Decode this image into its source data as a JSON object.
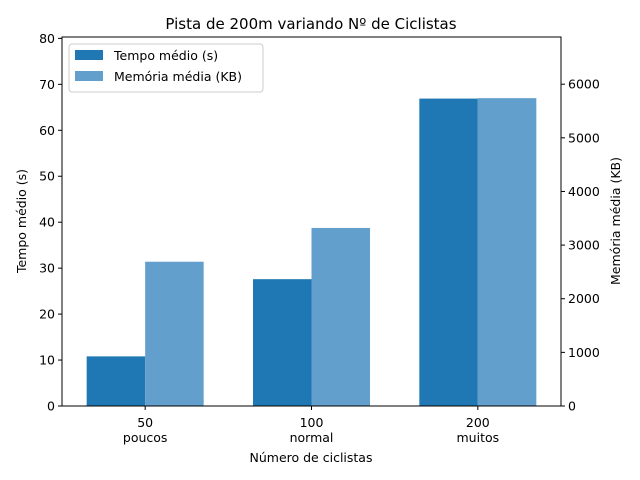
{
  "chart_data": {
    "type": "bar",
    "title": "Pista de 200m variando Nº de Ciclistas",
    "xlabel": "Número de ciclistas",
    "ylabel_left": "Tempo médio (s)",
    "ylabel_right": "Memória média (KB)",
    "categories": [
      {
        "line1": "50",
        "line2": "poucos"
      },
      {
        "line1": "100",
        "line2": "normal"
      },
      {
        "line1": "200",
        "line2": "muitos"
      }
    ],
    "series": [
      {
        "name": "Tempo médio (s)",
        "axis": "left",
        "color": "#1f77b4",
        "values": [
          10.8,
          27.6,
          66.9
        ]
      },
      {
        "name": "Memória média (KB)",
        "axis": "right",
        "color": "#629fcd",
        "values": [
          2690,
          3320,
          5740
        ]
      }
    ],
    "ylim_left": [
      0,
      80.3
    ],
    "ylim_right": [
      0,
      6880
    ],
    "yticks_left": [
      0,
      10,
      20,
      30,
      40,
      50,
      60,
      70,
      80
    ],
    "yticks_right": [
      0,
      1000,
      2000,
      3000,
      4000,
      5000,
      6000
    ],
    "legend": "top-left",
    "grid": false
  }
}
